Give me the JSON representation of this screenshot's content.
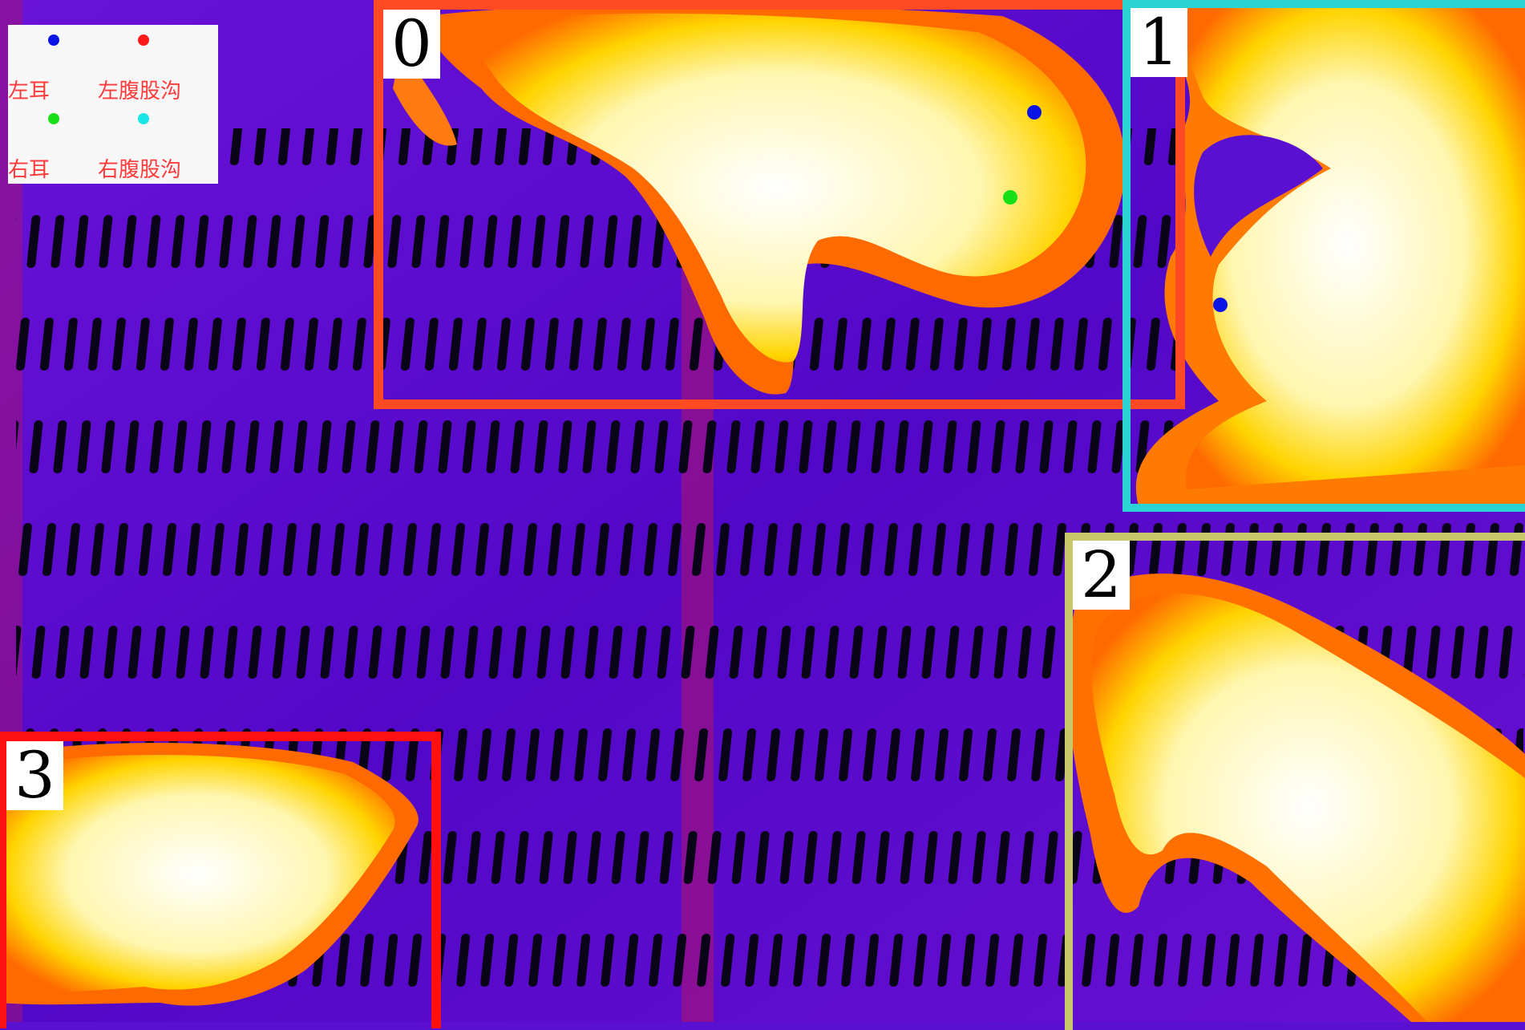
{
  "legend": {
    "items": [
      {
        "label": "左耳",
        "color": "#0a14e6"
      },
      {
        "label": "左腹股沟",
        "color": "#ff1a1a"
      },
      {
        "label": "右耳",
        "color": "#18e018"
      },
      {
        "label": "右腹股沟",
        "color": "#19e6e6"
      }
    ]
  },
  "detections": [
    {
      "id": "0",
      "color": "#ff4a24"
    },
    {
      "id": "1",
      "color": "#2ad4d4"
    },
    {
      "id": "2",
      "color": "#c8c86a"
    },
    {
      "id": "3",
      "color": "#ff1010"
    }
  ],
  "keypoint_colors": {
    "blue": "#0a14e6",
    "green": "#18e018"
  }
}
